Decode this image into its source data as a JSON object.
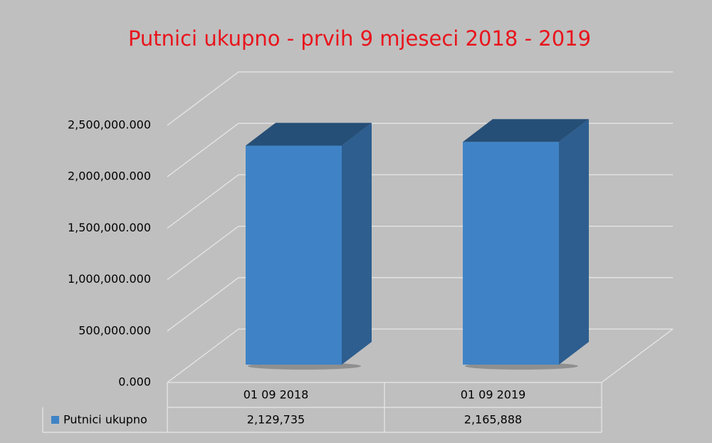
{
  "chart_data": {
    "type": "bar3d",
    "title": "Putnici ukupno - prvih 9 mjeseci 2018 - 2019",
    "categories": [
      "01 09 2018",
      "01 09 2019"
    ],
    "series": [
      {
        "name": "Putnici ukupno",
        "color": "#3f83c6",
        "values": [
          2129735,
          2165888
        ],
        "value_labels": [
          "2,129,735",
          "2,165,888"
        ]
      }
    ],
    "ylim": [
      0,
      2500000
    ],
    "yticks": [
      {
        "value": 0,
        "label": "0.000"
      },
      {
        "value": 500000,
        "label": "500,000.000"
      },
      {
        "value": 1000000,
        "label": "1,000,000.000"
      },
      {
        "value": 1500000,
        "label": "1,500,000.000"
      },
      {
        "value": 2000000,
        "label": "2,000,000.000"
      },
      {
        "value": 2500000,
        "label": "2,500,000.000"
      }
    ],
    "grid": true
  }
}
